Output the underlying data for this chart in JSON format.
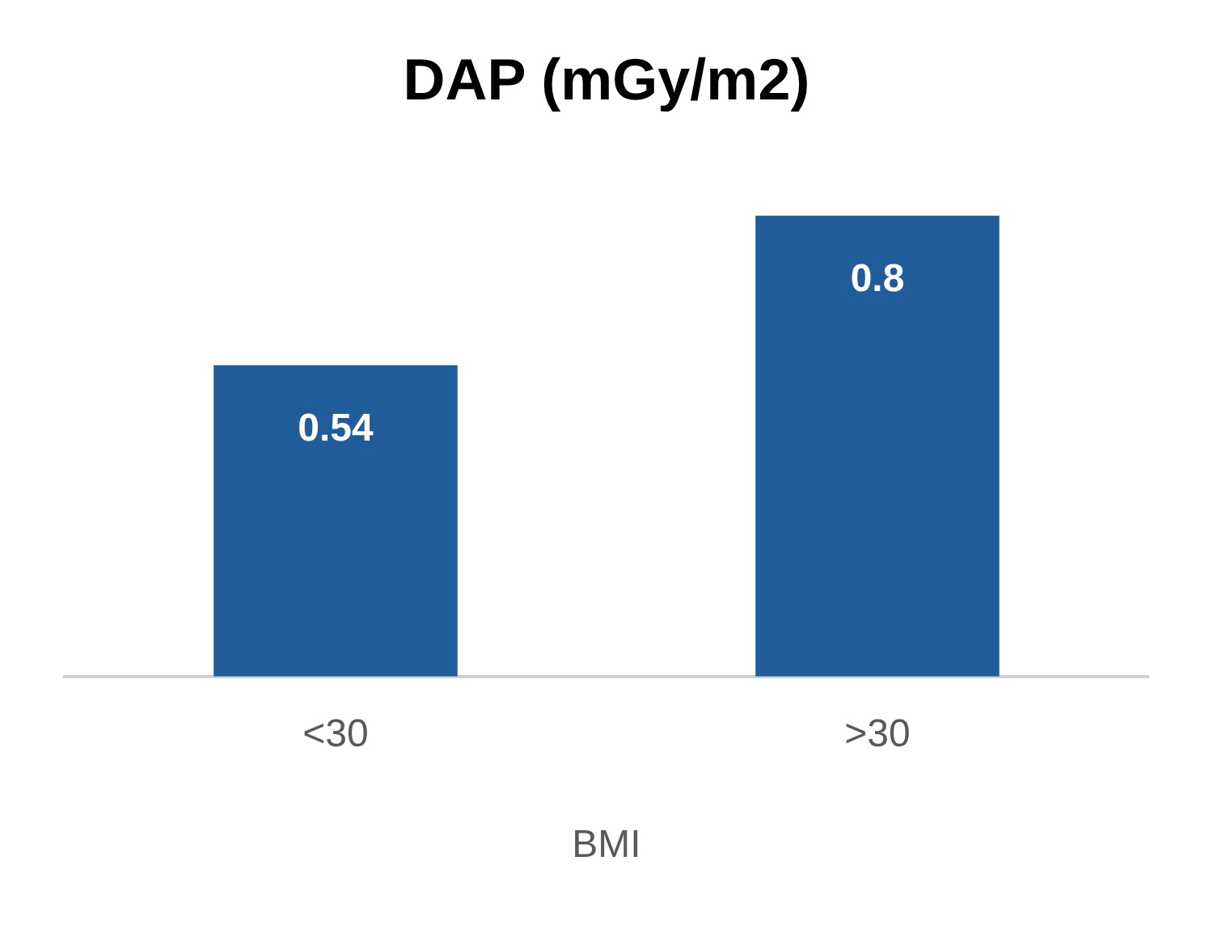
{
  "chart_data": {
    "type": "bar",
    "title": "DAP (mGy/m2)",
    "xlabel": "BMI",
    "categories": [
      "<30",
      ">30"
    ],
    "values": [
      0.54,
      0.8
    ],
    "color": "#1f5c99",
    "data_labels": true,
    "grid": false,
    "legend": false
  }
}
